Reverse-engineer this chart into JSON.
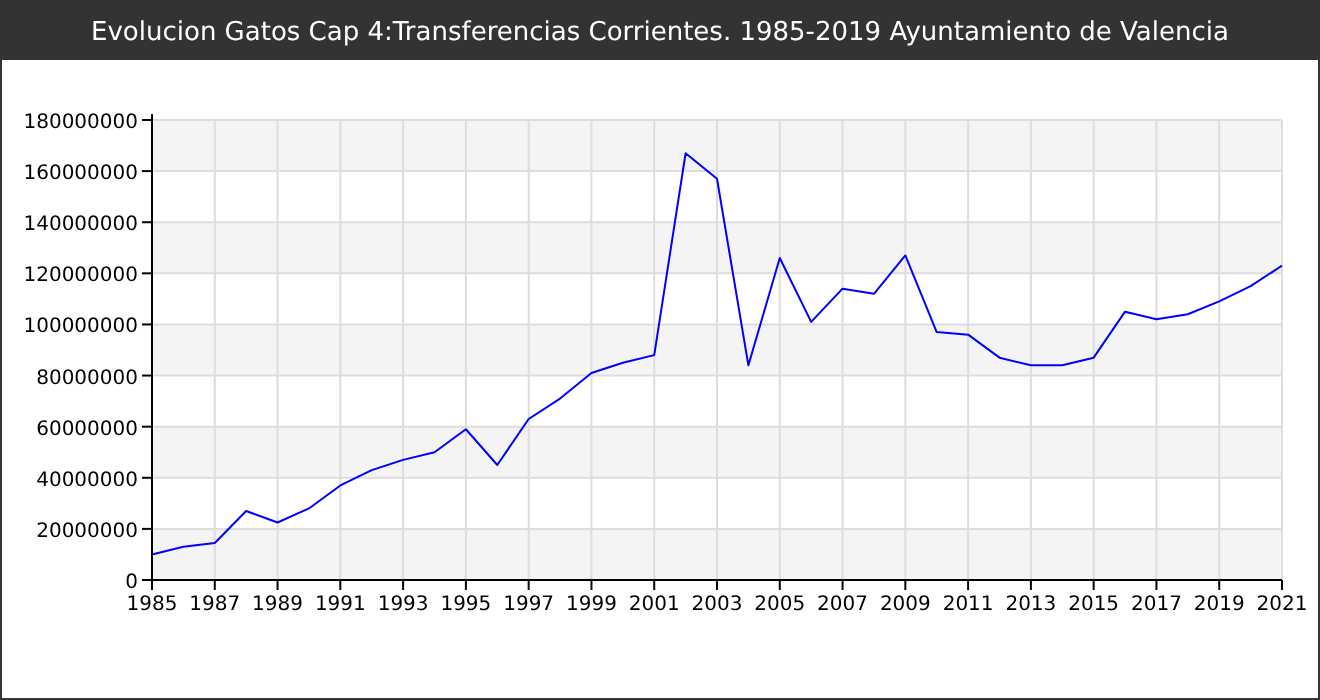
{
  "chart_data": {
    "type": "line",
    "title": "Evolucion Gatos Cap 4:Transferencias Corrientes. 1985-2019 Ayuntamiento de Valencia",
    "x": [
      1985,
      1986,
      1987,
      1988,
      1989,
      1990,
      1991,
      1992,
      1993,
      1994,
      1995,
      1996,
      1997,
      1998,
      1999,
      2000,
      2001,
      2002,
      2003,
      2004,
      2005,
      2006,
      2007,
      2008,
      2009,
      2010,
      2011,
      2012,
      2013,
      2014,
      2015,
      2016,
      2017,
      2018,
      2019,
      2020,
      2021
    ],
    "series": [
      {
        "color": "#0000ff",
        "values": [
          10000000,
          13000000,
          14500000,
          27000000,
          22500000,
          28000000,
          37000000,
          43000000,
          47000000,
          50000000,
          59000000,
          45000000,
          63000000,
          71000000,
          81000000,
          85000000,
          88000000,
          167000000,
          157000000,
          84000000,
          126000000,
          101000000,
          114000000,
          112000000,
          127000000,
          97000000,
          96000000,
          87000000,
          84000000,
          84000000,
          87000000,
          105000000,
          102000000,
          104000000,
          109000000,
          115000000,
          123000000
        ]
      }
    ],
    "xlim": [
      1985,
      2021
    ],
    "xticks": [
      1985,
      1987,
      1989,
      1991,
      1993,
      1995,
      1997,
      1999,
      2001,
      2003,
      2005,
      2007,
      2009,
      2011,
      2013,
      2015,
      2017,
      2019,
      2021
    ],
    "ylim": [
      0,
      180000000
    ],
    "yticks": [
      0,
      20000000,
      40000000,
      60000000,
      80000000,
      100000000,
      120000000,
      140000000,
      160000000,
      180000000
    ],
    "grid": true,
    "marker": "none",
    "line_style": "solid"
  }
}
